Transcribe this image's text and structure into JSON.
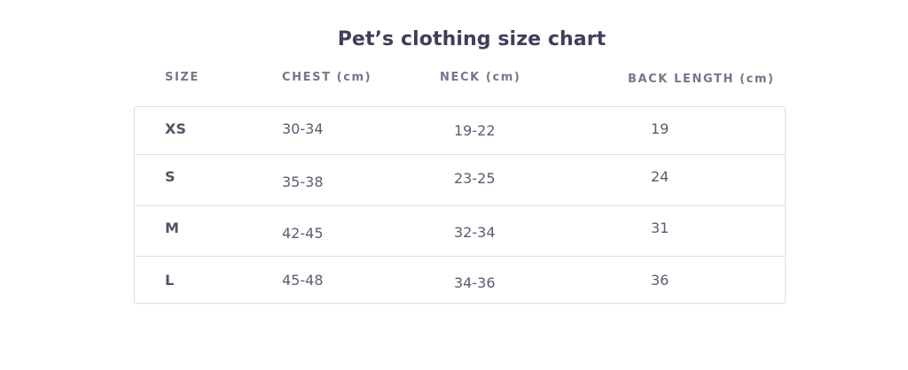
{
  "title": "Pet’s clothing size chart",
  "headers": {
    "size": "SIZE",
    "chest": "CHEST (cm)",
    "neck": "NECK (cm)",
    "back": "BACK LENGTH (cm)"
  },
  "rows": [
    {
      "size": "XS",
      "chest": "30-34",
      "neck": "19-22",
      "back": "19"
    },
    {
      "size": "S",
      "chest": "35-38",
      "neck": "23-25",
      "back": "24"
    },
    {
      "size": "M",
      "chest": "42-45",
      "neck": "32-34",
      "back": "31"
    },
    {
      "size": "L",
      "chest": "45-48",
      "neck": "34-36",
      "back": "36"
    }
  ],
  "colors": {
    "title": "#403e5a",
    "header": "#77758a",
    "cell": "#5c5a72",
    "border": "#dedde2"
  }
}
